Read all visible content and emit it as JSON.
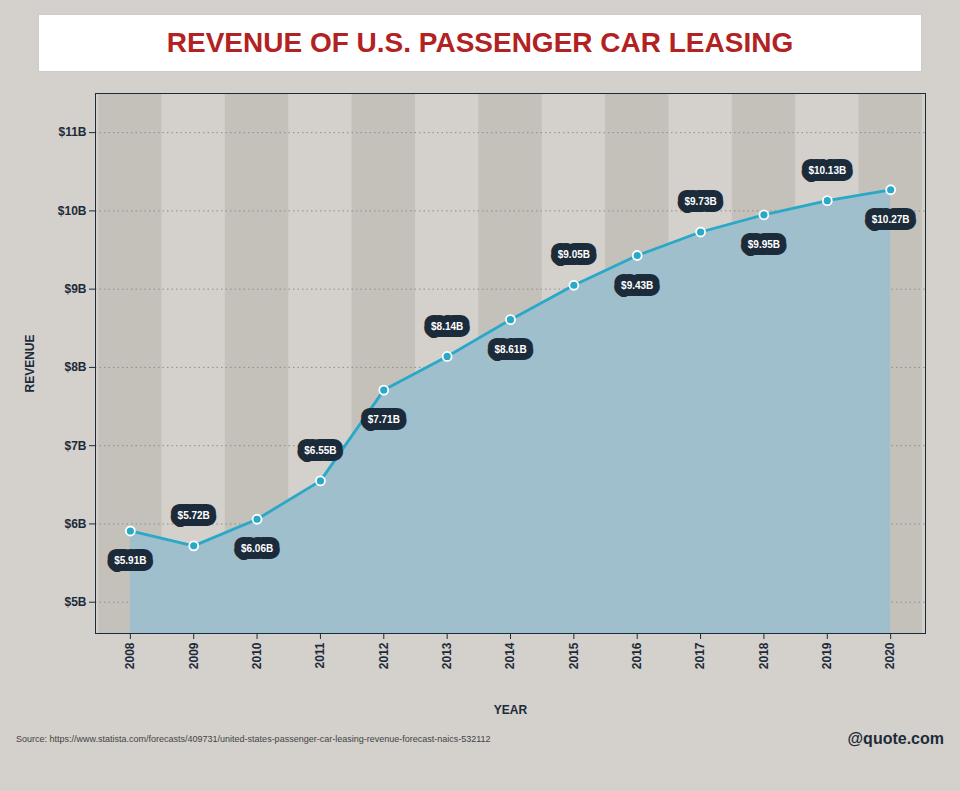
{
  "chart_data": {
    "type": "line",
    "title": "REVENUE OF U.S. PASSENGER CAR LEASING",
    "xlabel": "YEAR",
    "ylabel": "REVENUE",
    "x": [
      2008,
      2009,
      2010,
      2011,
      2012,
      2013,
      2014,
      2015,
      2016,
      2017,
      2018,
      2019,
      2020
    ],
    "values": [
      5.91,
      5.72,
      6.06,
      6.55,
      7.71,
      8.14,
      8.61,
      9.05,
      9.43,
      9.73,
      9.95,
      10.13,
      10.27
    ],
    "value_labels": [
      "$5.91B",
      "$5.72B",
      "$6.06B",
      "$6.55B",
      "$7.71B",
      "$8.14B",
      "$8.61B",
      "$9.05B",
      "$9.43B",
      "$9.73B",
      "$9.95B",
      "$10.13B",
      "$10.27B"
    ],
    "data_labels": true,
    "color": "#29a8c8",
    "xlim": [
      2007.45,
      2020.55
    ],
    "xticks": [
      2008,
      2009,
      2010,
      2011,
      2012,
      2013,
      2014,
      2015,
      2016,
      2017,
      2018,
      2019,
      2020
    ],
    "ylim": [
      4.6,
      11.5
    ],
    "yticks": [
      {
        "value": 5,
        "label": "$5B"
      },
      {
        "value": 6,
        "label": "$6B"
      },
      {
        "value": 7,
        "label": "$7B"
      },
      {
        "value": 8,
        "label": "$8B"
      },
      {
        "value": 9,
        "label": "$9B"
      },
      {
        "value": 10,
        "label": "$10B"
      },
      {
        "value": 11,
        "label": "$11B"
      }
    ],
    "grid": true,
    "annotations": [
      "Source: https://www.statista.com/forecasts/409731/united-states-passenger-car-leasing-revenue-forecast-naics-532112",
      "@quote.com"
    ]
  }
}
